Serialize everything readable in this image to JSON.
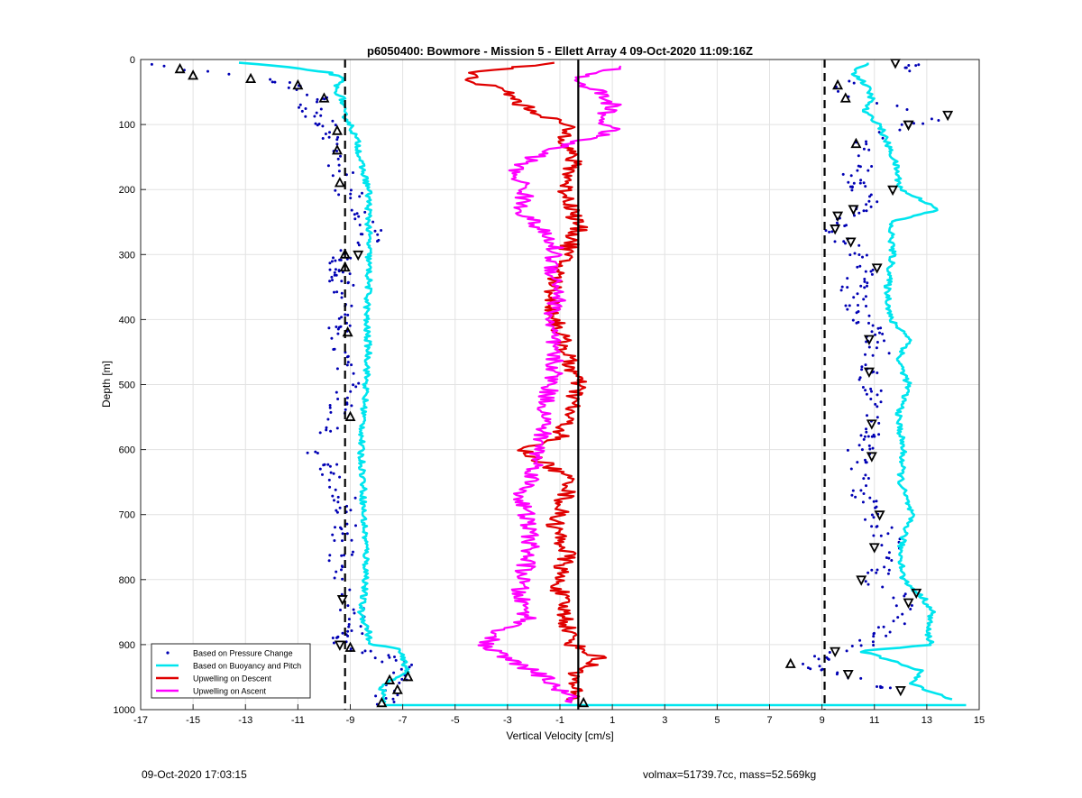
{
  "footer": {
    "date_printed": "09-Oct-2020 17:03:15",
    "vehicle_info": "volmax=51739.7cc, mass=52.569kg"
  },
  "chart_data": {
    "type": "line",
    "title": "p6050400: Bowmore - Mission 5 - Ellett Array 4 09-Oct-2020 11:09:16Z",
    "xlabel": "Vertical Velocity [cm/s]",
    "ylabel": "Depth [m]",
    "xlim": [
      -17,
      15
    ],
    "ylim": [
      0,
      1000
    ],
    "y_reversed": true,
    "grid": true,
    "legend_position": "bottom-left",
    "x_ticks": [
      -17,
      -15,
      -13,
      -11,
      -9,
      -7,
      -5,
      -3,
      -1,
      1,
      3,
      5,
      7,
      9,
      11,
      13,
      15
    ],
    "y_ticks": [
      0,
      100,
      200,
      300,
      400,
      500,
      600,
      700,
      800,
      900,
      1000
    ],
    "colors": {
      "pressure": "#0000b4",
      "buoyancy": "#00e5ee",
      "descent": "#e00000",
      "ascent": "#ff00ff",
      "reference": "#000000"
    },
    "series": [
      {
        "name": "Based on Pressure Change",
        "style": "dots",
        "groups": [
          {
            "y": [
              5,
              15,
              25,
              40,
              60,
              80,
              100,
              120,
              150,
              180,
              200,
              230,
              260,
              280,
              300,
              320,
              350,
              380,
              400,
              430,
              460,
              490,
              520,
              550,
              580,
              600,
              620,
              650,
              680,
              700,
              730,
              760,
              790,
              810,
              830,
              850,
              870,
              890,
              900,
              920,
              940,
              960,
              980,
              995
            ],
            "x": [
              -16.5,
              -15.2,
              -13.0,
              -11.2,
              -10.3,
              -10.6,
              -9.9,
              -9.6,
              -9.4,
              -9.3,
              -9.1,
              -8.7,
              -8.3,
              -8.2,
              -9.4,
              -9.6,
              -9.2,
              -9.3,
              -9.2,
              -9.6,
              -9.3,
              -9.0,
              -9.3,
              -9.4,
              -9.8,
              -10.4,
              -10.0,
              -9.4,
              -9.2,
              -9.0,
              -9.2,
              -9.4,
              -9.6,
              -9.1,
              -9.3,
              -8.8,
              -8.7,
              -9.2,
              -9.4,
              -7.6,
              -6.8,
              -7.3,
              -7.7,
              -7.8
            ]
          },
          {
            "y": [
              5,
              20,
              40,
              60,
              80,
              90,
              100,
              120,
              140,
              160,
              180,
              200,
              230,
              250,
              270,
              290,
              310,
              330,
              350,
              380,
              410,
              440,
              470,
              500,
              530,
              560,
              590,
              610,
              630,
              660,
              690,
              720,
              750,
              780,
              800,
              820,
              840,
              860,
              880,
              900,
              910,
              930,
              950,
              960,
              980
            ],
            "x": [
              12.5,
              12.0,
              9.5,
              10.5,
              12.2,
              13.4,
              12.3,
              11.0,
              10.3,
              10.6,
              10.0,
              10.4,
              10.8,
              9.5,
              9.6,
              10.1,
              10.8,
              10.5,
              10.2,
              10.4,
              10.8,
              11.2,
              11.0,
              10.9,
              11.3,
              11.1,
              10.6,
              10.3,
              10.4,
              10.2,
              10.9,
              11.3,
              11.6,
              11.2,
              11.0,
              11.7,
              12.3,
              12.0,
              11.4,
              10.6,
              9.8,
              8.2,
              10.2,
              11.2,
              12.0
            ]
          }
        ]
      },
      {
        "name": "Based on Buoyancy and Pitch",
        "style": "line",
        "groups": [
          {
            "y": [
              5,
              10,
              20,
              30,
              45,
              60,
              80,
              100,
              130,
              160,
              200,
              250,
              300,
              350,
              400,
              450,
              500,
              550,
              600,
              650,
              700,
              750,
              800,
              850,
              880,
              900,
              905,
              940,
              965,
              990
            ],
            "x": [
              -13.3,
              -11.8,
              -9.8,
              -9.3,
              -9.6,
              -9.3,
              -9.3,
              -9.0,
              -8.7,
              -8.6,
              -8.3,
              -8.3,
              -8.3,
              -8.3,
              -8.4,
              -8.3,
              -8.4,
              -8.5,
              -8.6,
              -8.5,
              -8.5,
              -8.4,
              -8.4,
              -8.6,
              -8.3,
              -8.3,
              -7.2,
              -6.8,
              -7.8,
              -7.7
            ]
          },
          {
            "y": [
              5,
              20,
              40,
              60,
              80,
              100,
              130,
              160,
              200,
              230,
              250,
              300,
              350,
              400,
              430,
              460,
              500,
              550,
              600,
              650,
              700,
              750,
              800,
              830,
              850,
              880,
              900,
              910,
              940,
              960,
              985
            ],
            "x": [
              10.7,
              10.2,
              10.7,
              10.9,
              10.6,
              11.2,
              11.5,
              11.8,
              12.0,
              13.5,
              11.6,
              11.7,
              11.5,
              11.6,
              12.4,
              11.9,
              12.3,
              11.9,
              12.1,
              12.0,
              12.4,
              12.0,
              12.1,
              12.9,
              13.2,
              13.0,
              13.2,
              10.5,
              12.8,
              12.4,
              14.0
            ]
          }
        ]
      },
      {
        "name": "Upwelling on Descent",
        "style": "line",
        "groups": [
          {
            "y": [
              5,
              20,
              35,
              50,
              70,
              100,
              130,
              160,
              200,
              230,
              260,
              300,
              340,
              380,
              420,
              460,
              500,
              540,
              580,
              600,
              620,
              650,
              680,
              720,
              760,
              800,
              840,
              870,
              900,
              920,
              950,
              990
            ],
            "x": [
              -1.0,
              -4.5,
              -4.2,
              -3.0,
              -2.5,
              -0.8,
              -0.7,
              -0.5,
              -0.8,
              -0.5,
              -0.3,
              -0.8,
              -1.2,
              -1.3,
              -1.0,
              -0.7,
              -0.3,
              -0.6,
              -1.0,
              -2.5,
              -1.6,
              -0.5,
              -0.9,
              -1.2,
              -0.7,
              -1.1,
              -0.9,
              -0.7,
              -0.5,
              0.5,
              -0.5,
              -0.5
            ]
          }
        ]
      },
      {
        "name": "Upwelling on Ascent",
        "style": "line",
        "groups": [
          {
            "y": [
              10,
              30,
              50,
              70,
              90,
              110,
              140,
              170,
              200,
              230,
              260,
              290,
              320,
              360,
              400,
              440,
              480,
              520,
              560,
              600,
              640,
              670,
              700,
              740,
              780,
              820,
              860,
              880,
              900,
              920,
              950,
              990
            ],
            "x": [
              1.5,
              -0.5,
              0.5,
              1.0,
              0.6,
              1.0,
              -1.5,
              -2.8,
              -2.3,
              -2.5,
              -1.8,
              -1.2,
              -1.3,
              -1.0,
              -1.4,
              -1.3,
              -1.2,
              -1.5,
              -1.6,
              -1.8,
              -2.0,
              -2.5,
              -2.3,
              -2.1,
              -2.3,
              -2.6,
              -2.2,
              -3.3,
              -3.9,
              -3.1,
              -1.6,
              -0.4
            ]
          }
        ]
      }
    ],
    "markers": {
      "triangle_up": {
        "x": [
          -15.5,
          -15.0,
          -12.8,
          -11.0,
          -10.0,
          -9.5,
          -9.5,
          -9.4,
          -9.2,
          -9.2,
          -9.1,
          -9.0,
          -7.5,
          -6.8,
          -7.2,
          -7.8,
          -9.0,
          7.8,
          9.6,
          9.9,
          10.3,
          -0.1
        ],
        "y": [
          15,
          25,
          30,
          40,
          60,
          110,
          140,
          190,
          300,
          320,
          420,
          550,
          955,
          950,
          970,
          990,
          905,
          930,
          40,
          60,
          130,
          990
        ]
      },
      "triangle_down": {
        "x": [
          11.8,
          12.3,
          13.8,
          12.3,
          9.6,
          9.5,
          10.1,
          11.1,
          11.7,
          10.8,
          10.9,
          10.9,
          11.2,
          11.0,
          10.5,
          10.8,
          12.6,
          12.3,
          12.0,
          9.5,
          10.0,
          10.2,
          -9.4,
          -8.7,
          -9.3
        ],
        "y": [
          5,
          100,
          85,
          100,
          240,
          260,
          280,
          320,
          200,
          480,
          560,
          610,
          700,
          750,
          800,
          430,
          820,
          835,
          970,
          910,
          945,
          230,
          900,
          300,
          830
        ]
      }
    },
    "reference_lines": [
      {
        "type": "dashed",
        "x": -9.2
      },
      {
        "type": "solid",
        "x": -0.3
      },
      {
        "type": "dashed",
        "x": 9.1
      }
    ],
    "spike_y": 993,
    "spike_x": [
      -7.7,
      14.5
    ]
  }
}
